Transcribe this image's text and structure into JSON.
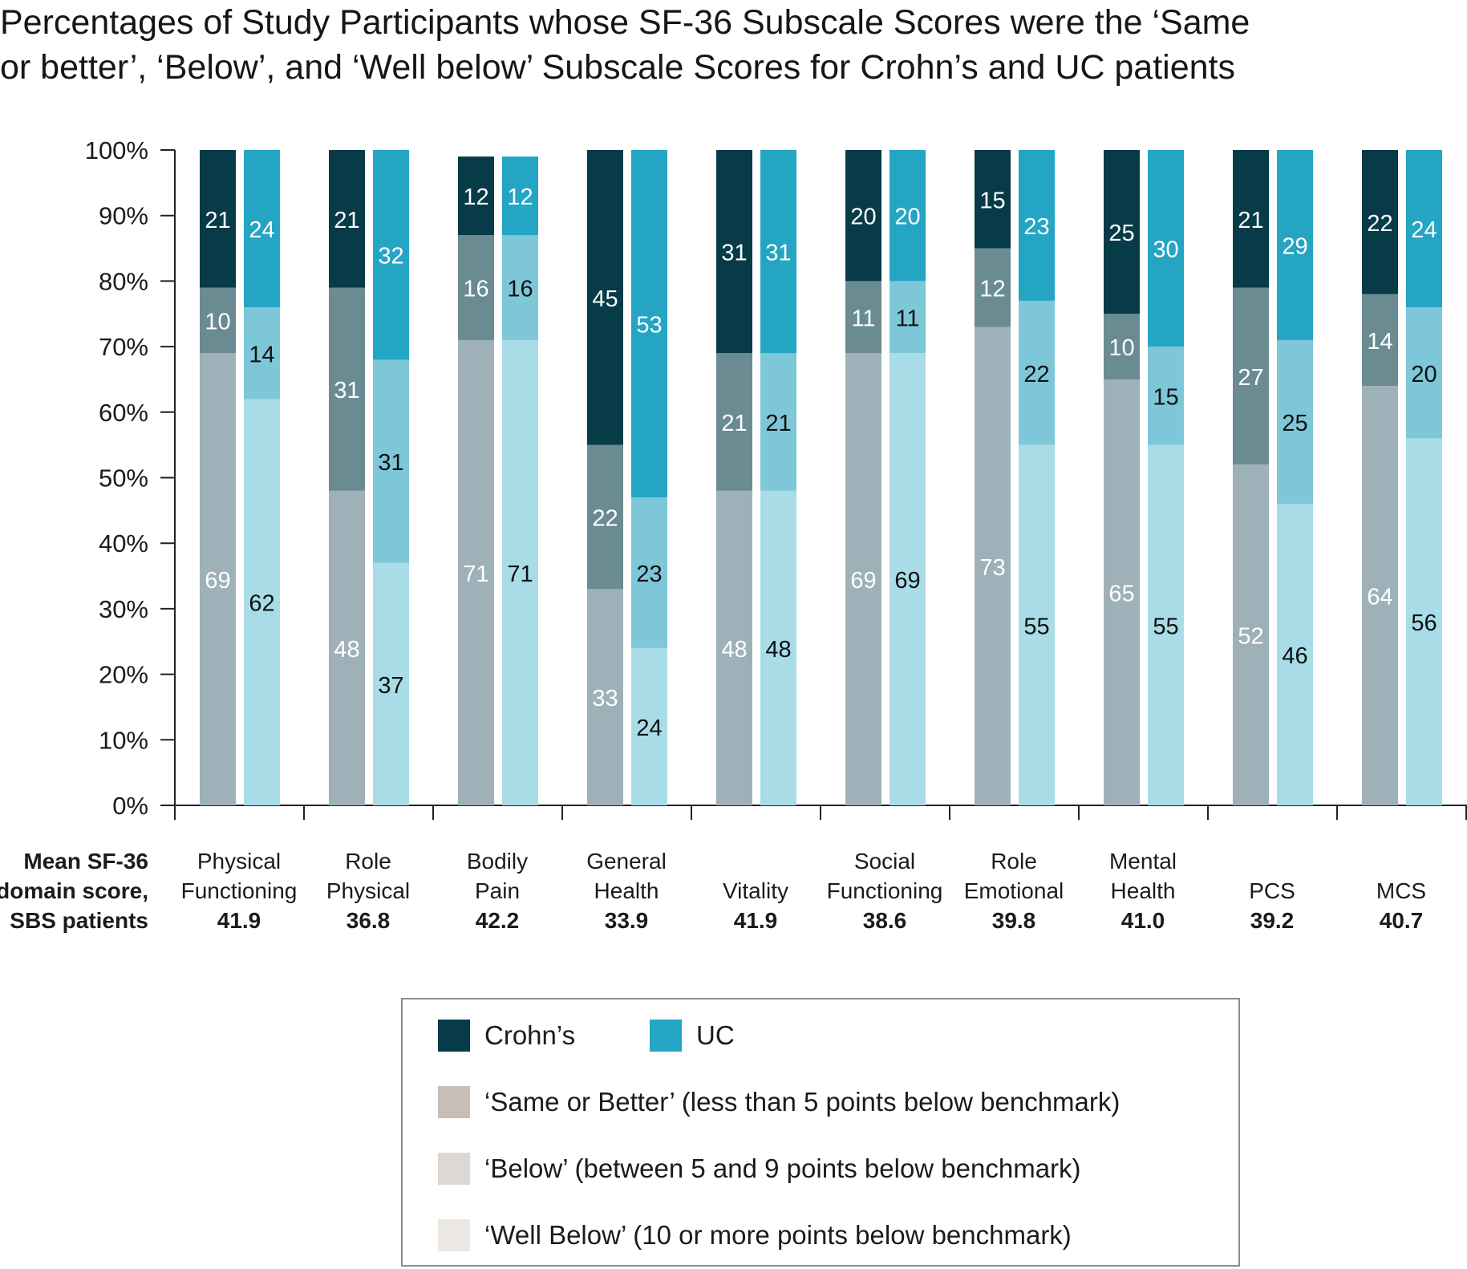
{
  "title": {
    "line1": "Percentages of Study Participants whose SF-36 Subscale Scores were the ‘Same",
    "line2": "or better’, ‘Below’, and ‘Well below’ Subscale Scores for Crohn’s and UC patients"
  },
  "row_label": [
    "Mean SF-36",
    "domain score,",
    "SBS patients"
  ],
  "colors": {
    "crohns": {
      "same_or_better": "#9fb1b8",
      "below": "#6b8b92",
      "well_below": "#073b48"
    },
    "uc": {
      "same_or_better": "#a8dce7",
      "below": "#7ec7d9",
      "well_below": "#25a5c4"
    },
    "legend_neutral": {
      "same_or_better": "#c8beb5",
      "below": "#ddd8d3",
      "well_below": "#ebe7e3"
    },
    "axis": "#222222"
  },
  "chart_data": {
    "type": "bar",
    "stacked": true,
    "grouped": true,
    "ylim": [
      0,
      100
    ],
    "yticks": [
      "0%",
      "10%",
      "20%",
      "30%",
      "40%",
      "50%",
      "60%",
      "70%",
      "80%",
      "90%",
      "100%"
    ],
    "groups": [
      {
        "label": [
          "Physical",
          "Functioning"
        ],
        "mean": "41.9",
        "crohns": [
          69,
          10,
          21
        ],
        "uc": [
          62,
          14,
          24
        ]
      },
      {
        "label": [
          "Role",
          "Physical"
        ],
        "mean": "36.8",
        "crohns": [
          48,
          31,
          21
        ],
        "uc": [
          37,
          31,
          32
        ]
      },
      {
        "label": [
          "Bodily",
          "Pain"
        ],
        "mean": "42.2",
        "crohns": [
          71,
          16,
          12
        ],
        "uc": [
          71,
          16,
          12
        ]
      },
      {
        "label": [
          "General",
          "Health"
        ],
        "mean": "33.9",
        "crohns": [
          33,
          22,
          45
        ],
        "uc": [
          24,
          23,
          53
        ]
      },
      {
        "label": [
          "",
          "Vitality"
        ],
        "mean": "41.9",
        "crohns": [
          48,
          21,
          31
        ],
        "uc": [
          48,
          21,
          31
        ]
      },
      {
        "label": [
          "Social",
          "Functioning"
        ],
        "mean": "38.6",
        "crohns": [
          69,
          11,
          20
        ],
        "uc": [
          69,
          11,
          20
        ]
      },
      {
        "label": [
          "Role",
          "Emotional"
        ],
        "mean": "39.8",
        "crohns": [
          73,
          12,
          15
        ],
        "uc": [
          55,
          22,
          23
        ]
      },
      {
        "label": [
          "Mental",
          "Health"
        ],
        "mean": "41.0",
        "crohns": [
          65,
          10,
          25
        ],
        "uc": [
          55,
          15,
          30
        ]
      },
      {
        "label": [
          "",
          "PCS"
        ],
        "mean": "39.2",
        "crohns": [
          52,
          27,
          21
        ],
        "uc": [
          46,
          25,
          29
        ]
      },
      {
        "label": [
          "",
          "MCS"
        ],
        "mean": "40.7",
        "crohns": [
          64,
          14,
          22
        ],
        "uc": [
          56,
          20,
          24
        ]
      }
    ],
    "segment_order": [
      "same_or_better",
      "below",
      "well_below"
    ],
    "legend": {
      "crohns": "Crohn’s",
      "uc": "UC",
      "same_or_better": "‘Same or Better’ (less than 5 points below benchmark)",
      "below": "‘Below’ (between 5 and 9 points below benchmark)",
      "well_below": "‘Well Below’ (10 or more points below benchmark)"
    }
  }
}
